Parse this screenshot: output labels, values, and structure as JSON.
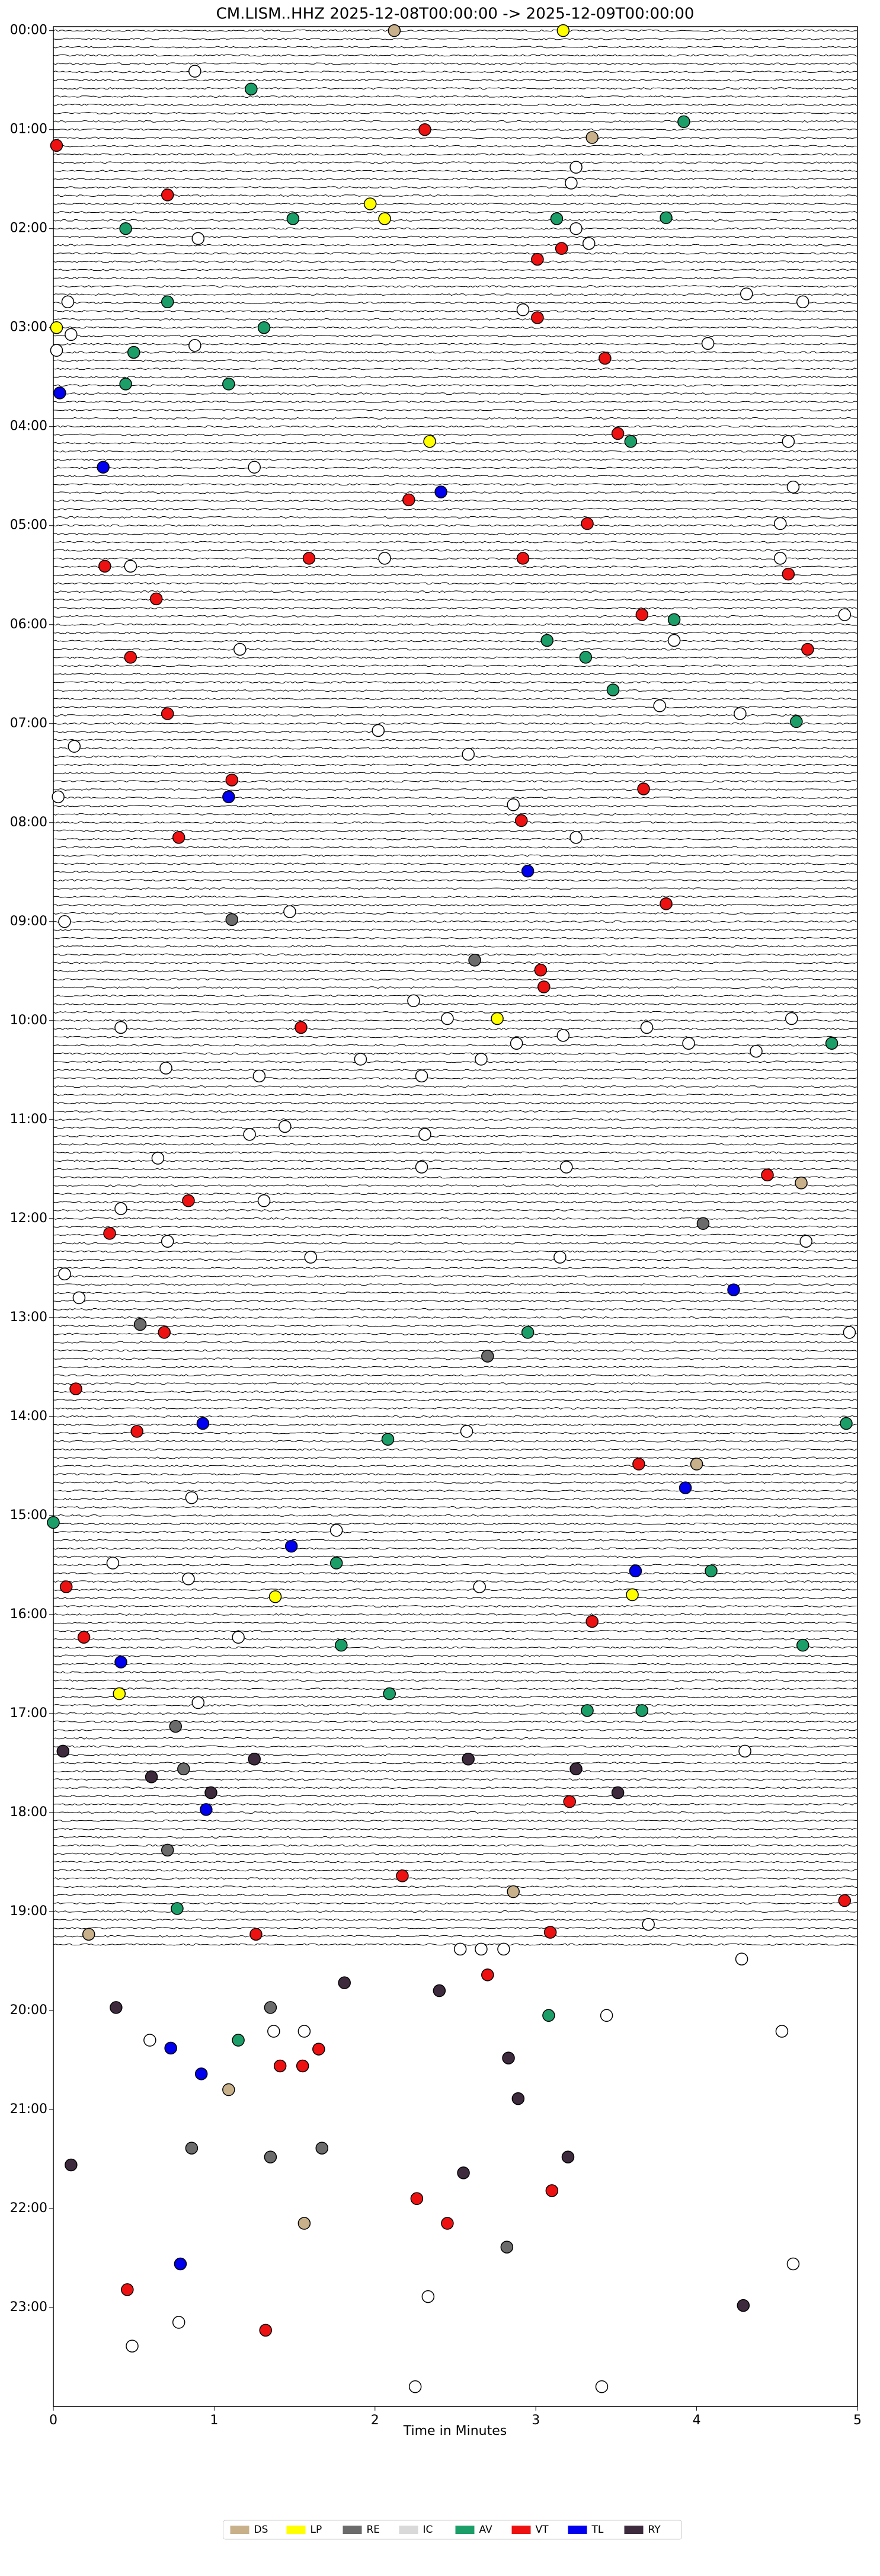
{
  "chart_data": {
    "type": "scatter",
    "title": "CM.LISM..HHZ  2025-12-08T00:00:00 -> 2025-12-09T00:00:00",
    "x_label": "Time in Minutes",
    "xlim": [
      0,
      5
    ],
    "xticks": [
      0,
      1,
      2,
      3,
      4,
      5
    ],
    "ylim": [
      24,
      -0.04
    ],
    "yticks": [
      {
        "value": 0,
        "label": "00:00"
      },
      {
        "value": 1,
        "label": "01:00"
      },
      {
        "value": 2,
        "label": "02:00"
      },
      {
        "value": 3,
        "label": "03:00"
      },
      {
        "value": 4,
        "label": "04:00"
      },
      {
        "value": 5,
        "label": "05:00"
      },
      {
        "value": 6,
        "label": "06:00"
      },
      {
        "value": 7,
        "label": "07:00"
      },
      {
        "value": 8,
        "label": "08:00"
      },
      {
        "value": 9,
        "label": "09:00"
      },
      {
        "value": 10,
        "label": "10:00"
      },
      {
        "value": 11,
        "label": "11:00"
      },
      {
        "value": 12,
        "label": "12:00"
      },
      {
        "value": 13,
        "label": "13:00"
      },
      {
        "value": 14,
        "label": "14:00"
      },
      {
        "value": 15,
        "label": "15:00"
      },
      {
        "value": 16,
        "label": "16:00"
      },
      {
        "value": 17,
        "label": "17:00"
      },
      {
        "value": 18,
        "label": "18:00"
      },
      {
        "value": 19,
        "label": "19:00"
      },
      {
        "value": 20,
        "label": "20:00"
      },
      {
        "value": 21,
        "label": "21:00"
      },
      {
        "value": 22,
        "label": "22:00"
      },
      {
        "value": 23,
        "label": "23:00"
      }
    ],
    "legend": "bottom",
    "series": [
      {
        "color": "#ffffff",
        "x": [
          0.88,
          3.25,
          3.22,
          0.9,
          3.25,
          3.33,
          0.09,
          2.92,
          4.31,
          4.66,
          0.11,
          4.07,
          0.88,
          0.02,
          4.57,
          1.25,
          4.6,
          4.52,
          0.48,
          2.06,
          4.52,
          4.92,
          3.86,
          1.16,
          3.77,
          4.27,
          2.02,
          0.13,
          2.58,
          0.03,
          2.86,
          3.25,
          1.47,
          0.07,
          2.24,
          2.45,
          2.66,
          1.91,
          1.28,
          0.7,
          0.42,
          2.29,
          2.88,
          3.17,
          3.69,
          3.95,
          4.59,
          4.37,
          1.44,
          2.31,
          1.22,
          0.65,
          2.29,
          3.19,
          1.31,
          0.42,
          1.6,
          0.71,
          0.07,
          0.16,
          3.15,
          4.68,
          4.95,
          2.57,
          0.86,
          1.76,
          0.37,
          0.84,
          2.65,
          1.15,
          0.9,
          4.3,
          3.7,
          0.6,
          1.37,
          1.56,
          3.44,
          4.53,
          4.6,
          2.33,
          0.78,
          0.49,
          2.25,
          3.41,
          2.53,
          2.66,
          2.8,
          4.28
        ],
        "values": [
          0.41,
          1.38,
          1.54,
          2.1,
          2.0,
          2.15,
          2.74,
          2.82,
          2.66,
          2.74,
          3.07,
          3.16,
          3.18,
          3.23,
          4.15,
          4.41,
          4.61,
          4.98,
          5.41,
          5.33,
          5.33,
          5.9,
          6.16,
          6.25,
          6.82,
          6.9,
          7.07,
          7.23,
          7.31,
          7.74,
          7.82,
          8.15,
          8.9,
          9.0,
          9.8,
          9.98,
          10.39,
          10.39,
          10.56,
          10.48,
          10.07,
          10.56,
          10.23,
          10.15,
          10.07,
          10.23,
          9.98,
          10.31,
          11.07,
          11.15,
          11.15,
          11.39,
          11.48,
          11.48,
          11.82,
          11.9,
          12.39,
          12.23,
          12.56,
          12.8,
          12.39,
          12.23,
          13.15,
          14.15,
          14.82,
          15.15,
          15.48,
          15.64,
          15.72,
          16.23,
          16.89,
          17.38,
          19.13,
          20.3,
          20.21,
          20.21,
          20.05,
          20.21,
          22.56,
          22.89,
          23.15,
          23.39,
          23.8,
          23.8,
          19.38,
          19.38,
          19.38,
          19.48
        ]
      },
      {
        "name": "DS",
        "color": "#c8b08a",
        "x": [
          2.12,
          3.35,
          4.65,
          4.0,
          2.86,
          0.22,
          1.09,
          1.56
        ],
        "values": [
          0,
          1.08,
          11.64,
          14.48,
          18.8,
          19.23,
          20.8,
          22.15
        ]
      },
      {
        "name": "LP",
        "color": "#ffff00",
        "x": [
          3.17,
          1.97,
          2.06,
          0.02,
          2.34,
          2.76,
          3.6,
          1.38,
          0.41
        ],
        "values": [
          0,
          1.75,
          1.9,
          3.0,
          4.15,
          9.98,
          15.8,
          15.82,
          16.8
        ]
      },
      {
        "name": "RE",
        "color": "#6b6b6b",
        "x": [
          2.62,
          4.04,
          0.54,
          2.7,
          0.76,
          0.81,
          0.71,
          1.35,
          0.86,
          1.35,
          1.67,
          2.82,
          1.11
        ],
        "values": [
          9.39,
          12.05,
          13.07,
          13.39,
          17.13,
          17.56,
          18.38,
          19.97,
          21.39,
          21.48,
          21.39,
          22.39,
          8.98
        ]
      },
      {
        "name": "IC",
        "color": "#d9d9d9",
        "x": [],
        "values": []
      },
      {
        "name": "AV",
        "color": "#1b9e67",
        "x": [
          3.92,
          1.23,
          1.49,
          0.45,
          3.13,
          3.81,
          0.71,
          1.31,
          0.5,
          1.09,
          0.45,
          3.59,
          3.86,
          3.07,
          3.31,
          3.48,
          4.62,
          4.84,
          2.95,
          2.08,
          4.93,
          0,
          1.76,
          4.09,
          1.79,
          4.66,
          2.09,
          3.32,
          3.66,
          0.77,
          3.08,
          1.15
        ],
        "values": [
          0.92,
          0.59,
          1.9,
          2.0,
          1.9,
          1.89,
          2.74,
          3.0,
          3.25,
          3.57,
          3.57,
          4.15,
          5.95,
          6.16,
          6.33,
          6.66,
          6.98,
          10.23,
          13.15,
          14.23,
          14.07,
          15.07,
          15.48,
          15.56,
          16.31,
          16.31,
          16.8,
          16.97,
          16.97,
          18.97,
          20.05,
          20.3
        ]
      },
      {
        "name": "VT",
        "color": "#ee1111",
        "x": [
          0.02,
          2.31,
          0.71,
          3.01,
          3.16,
          3.01,
          3.43,
          3.51,
          2.21,
          3.32,
          0.32,
          1.59,
          2.92,
          4.57,
          0.64,
          3.66,
          4.69,
          0.48,
          0.71,
          1.11,
          3.67,
          2.91,
          0.78,
          3.81,
          3.03,
          3.05,
          1.54,
          4.44,
          0.84,
          0.35,
          0.69,
          0.14,
          0.52,
          3.64,
          0.08,
          3.35,
          0.19,
          3.21,
          2.17,
          4.92,
          1.26,
          3.09,
          2.7,
          1.41,
          1.55,
          1.65,
          2.26,
          3.1,
          2.45,
          0.46,
          1.32
        ],
        "values": [
          1.16,
          1.0,
          1.66,
          2.31,
          2.2,
          2.9,
          3.31,
          4.07,
          4.74,
          4.98,
          5.41,
          5.33,
          5.33,
          5.49,
          5.74,
          5.9,
          6.25,
          6.33,
          6.9,
          7.57,
          7.66,
          7.98,
          8.15,
          8.82,
          9.49,
          9.66,
          10.07,
          11.56,
          11.82,
          12.15,
          13.15,
          13.72,
          14.15,
          14.48,
          15.72,
          16.07,
          16.23,
          17.89,
          18.64,
          18.89,
          19.23,
          19.21,
          19.64,
          20.56,
          20.56,
          20.39,
          21.9,
          21.82,
          22.15,
          22.82,
          23.23
        ]
      },
      {
        "name": "TL",
        "color": "#0000ee",
        "x": [
          0.04,
          0.31,
          2.41,
          1.09,
          2.95,
          4.23,
          0.93,
          3.93,
          1.48,
          3.62,
          0.42,
          0.95,
          0.73,
          0.92,
          0.79
        ],
        "values": [
          3.66,
          4.41,
          4.66,
          7.74,
          8.49,
          12.72,
          14.07,
          14.72,
          15.31,
          15.56,
          16.48,
          17.97,
          20.38,
          20.64,
          22.56
        ]
      },
      {
        "name": "RY",
        "color": "#3d2b3d",
        "x": [
          0.06,
          1.25,
          0.61,
          2.58,
          3.25,
          3.51,
          0.98,
          0.39,
          1.81,
          2.4,
          2.83,
          2.89,
          0.11,
          3.2,
          2.55,
          4.29
        ],
        "values": [
          17.38,
          17.46,
          17.64,
          17.46,
          17.56,
          17.8,
          17.8,
          19.97,
          19.72,
          19.8,
          20.48,
          20.89,
          21.56,
          21.48,
          21.64,
          22.98
        ]
      }
    ]
  }
}
